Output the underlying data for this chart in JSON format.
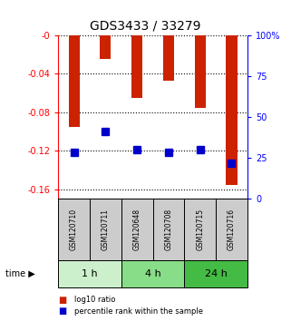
{
  "title": "GDS3433 / 33279",
  "samples": [
    "GSM120710",
    "GSM120711",
    "GSM120648",
    "GSM120708",
    "GSM120715",
    "GSM120716"
  ],
  "log10_ratio": [
    -0.095,
    -0.025,
    -0.065,
    -0.047,
    -0.075,
    -0.155
  ],
  "percentile_rank": [
    0.285,
    0.41,
    0.3,
    0.285,
    0.3,
    0.22
  ],
  "bar_color": "#cc2200",
  "marker_color": "#0000cc",
  "ylim_left": [
    -0.17,
    0.0
  ],
  "ylim_right": [
    0.0,
    1.0
  ],
  "yticks_left": [
    0,
    -0.04,
    -0.08,
    -0.12,
    -0.16
  ],
  "ytick_labels_left": [
    "-0",
    "-0.04",
    "-0.08",
    "-0.12",
    "-0.16"
  ],
  "ytick_labels_right": [
    "0",
    "25",
    "50",
    "75",
    "100%"
  ],
  "yticks_right": [
    0.0,
    0.25,
    0.5,
    0.75,
    1.0
  ],
  "time_groups": [
    {
      "label": "1 h",
      "indices": [
        0,
        1
      ],
      "color": "#ccf0cc"
    },
    {
      "label": "4 h",
      "indices": [
        2,
        3
      ],
      "color": "#88dd88"
    },
    {
      "label": "24 h",
      "indices": [
        4,
        5
      ],
      "color": "#44bb44"
    }
  ],
  "legend_items": [
    {
      "label": "log10 ratio",
      "color": "#cc2200"
    },
    {
      "label": "percentile rank within the sample",
      "color": "#0000cc"
    }
  ],
  "bar_width": 0.35,
  "marker_size": 6,
  "bg_label_box": "#cccccc",
  "fig_width": 3.21,
  "fig_height": 3.54,
  "fig_dpi": 100
}
